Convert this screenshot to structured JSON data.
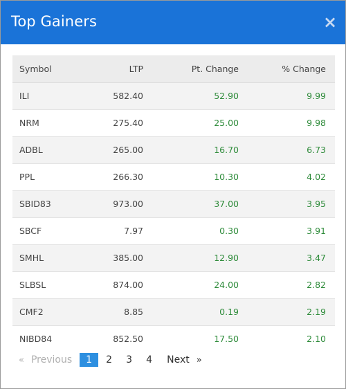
{
  "modal": {
    "title": "Top Gainers",
    "close_label": "×"
  },
  "table": {
    "headers": {
      "symbol": "Symbol",
      "ltp": "LTP",
      "pt_change": "Pt. Change",
      "pct_change": "% Change"
    },
    "rows": [
      {
        "symbol": "ILI",
        "ltp": "582.40",
        "pt_change": "52.90",
        "pct_change": "9.99"
      },
      {
        "symbol": "NRM",
        "ltp": "275.40",
        "pt_change": "25.00",
        "pct_change": "9.98"
      },
      {
        "symbol": "ADBL",
        "ltp": "265.00",
        "pt_change": "16.70",
        "pct_change": "6.73"
      },
      {
        "symbol": "PPL",
        "ltp": "266.30",
        "pt_change": "10.30",
        "pct_change": "4.02"
      },
      {
        "symbol": "SBID83",
        "ltp": "973.00",
        "pt_change": "37.00",
        "pct_change": "3.95"
      },
      {
        "symbol": "SBCF",
        "ltp": "7.97",
        "pt_change": "0.30",
        "pct_change": "3.91"
      },
      {
        "symbol": "SMHL",
        "ltp": "385.00",
        "pt_change": "12.90",
        "pct_change": "3.47"
      },
      {
        "symbol": "SLBSL",
        "ltp": "874.00",
        "pt_change": "24.00",
        "pct_change": "2.82"
      },
      {
        "symbol": "CMF2",
        "ltp": "8.85",
        "pt_change": "0.19",
        "pct_change": "2.19"
      },
      {
        "symbol": "NIBD84",
        "ltp": "852.50",
        "pt_change": "17.50",
        "pct_change": "2.10"
      }
    ]
  },
  "pagination": {
    "prev_arrow": "«",
    "prev_label": "Previous",
    "pages": [
      "1",
      "2",
      "3",
      "4"
    ],
    "active_page": "1",
    "next_label": "Next",
    "next_arrow": "»"
  },
  "colors": {
    "header_bg": "#1a73d8",
    "positive": "#2e8b3a",
    "active_page": "#2d8fe0"
  },
  "icons": {
    "close": "close-icon"
  }
}
